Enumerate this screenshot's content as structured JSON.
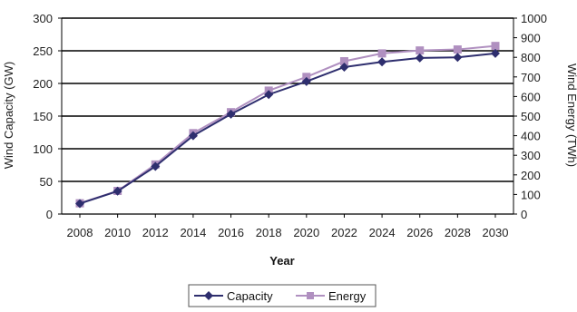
{
  "chart_data": {
    "type": "line",
    "title": "",
    "xlabel": "Year",
    "ylabel_left": "Wind Capacity (GW)",
    "ylabel_right": "Wind Energy (TWh)",
    "x": [
      2008,
      2010,
      2012,
      2014,
      2016,
      2018,
      2020,
      2022,
      2024,
      2026,
      2028,
      2030
    ],
    "x_ticks": [
      "2008",
      "2010",
      "2012",
      "2014",
      "2016",
      "2018",
      "2020",
      "2022",
      "2024",
      "2026",
      "2028",
      "2030"
    ],
    "ylim_left": [
      0,
      300
    ],
    "yticks_left": [
      "0",
      "50",
      "100",
      "150",
      "200",
      "250",
      "300"
    ],
    "ylim_right": [
      0,
      1000
    ],
    "yticks_right": [
      "0",
      "100",
      "200",
      "300",
      "400",
      "500",
      "600",
      "700",
      "800",
      "900",
      "1000"
    ],
    "grid": "horizontal",
    "legend_position": "bottom",
    "series": [
      {
        "name": "Capacity",
        "axis": "left",
        "marker": "diamond",
        "color": "#2e2e6e",
        "values": [
          16,
          35,
          73,
          120,
          153,
          183,
          203,
          225,
          233,
          239,
          240,
          246
        ]
      },
      {
        "name": "Energy",
        "axis": "right",
        "marker": "square",
        "color": "#b090c0",
        "values": [
          55,
          118,
          253,
          413,
          520,
          630,
          700,
          780,
          820,
          835,
          840,
          858
        ]
      }
    ]
  }
}
